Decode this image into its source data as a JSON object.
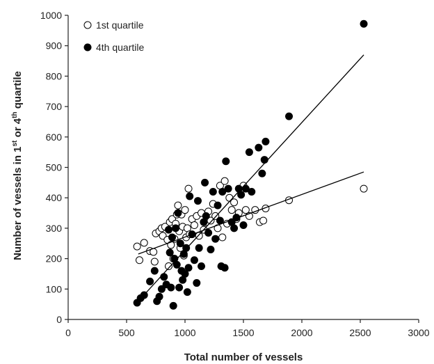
{
  "chart_data": {
    "type": "scatter",
    "xlabel": "Total number of vessels",
    "ylabel": "Number of vessels in 1st or 4th quartile",
    "xlim": [
      0,
      3000
    ],
    "ylim": [
      0,
      1000
    ],
    "xticks": [
      0,
      500,
      1000,
      1500,
      2000,
      2500,
      3000
    ],
    "yticks": [
      0,
      100,
      200,
      300,
      400,
      500,
      600,
      700,
      800,
      900,
      1000
    ],
    "grid": false,
    "legend_position": "top-left",
    "series": [
      {
        "name": "1st quartile",
        "marker": "open-circle",
        "color": "#000000",
        "trendline": [
          [
            600,
            215
          ],
          [
            2530,
            485
          ]
        ],
        "points": [
          [
            590,
            240
          ],
          [
            610,
            195
          ],
          [
            650,
            252
          ],
          [
            700,
            225
          ],
          [
            730,
            222
          ],
          [
            740,
            190
          ],
          [
            750,
            283
          ],
          [
            780,
            290
          ],
          [
            800,
            300
          ],
          [
            810,
            275
          ],
          [
            830,
            305
          ],
          [
            850,
            262
          ],
          [
            860,
            175
          ],
          [
            870,
            320
          ],
          [
            880,
            245
          ],
          [
            890,
            330
          ],
          [
            900,
            200
          ],
          [
            910,
            265
          ],
          [
            920,
            315
          ],
          [
            930,
            345
          ],
          [
            940,
            375
          ],
          [
            950,
            290
          ],
          [
            960,
            235
          ],
          [
            970,
            345
          ],
          [
            980,
            305
          ],
          [
            990,
            210
          ],
          [
            1000,
            360
          ],
          [
            1010,
            270
          ],
          [
            1020,
            300
          ],
          [
            1030,
            430
          ],
          [
            1040,
            280
          ],
          [
            1060,
            330
          ],
          [
            1080,
            310
          ],
          [
            1100,
            340
          ],
          [
            1120,
            275
          ],
          [
            1140,
            350
          ],
          [
            1160,
            295
          ],
          [
            1180,
            320
          ],
          [
            1200,
            355
          ],
          [
            1220,
            325
          ],
          [
            1240,
            380
          ],
          [
            1260,
            340
          ],
          [
            1280,
            300
          ],
          [
            1300,
            440
          ],
          [
            1320,
            270
          ],
          [
            1340,
            455
          ],
          [
            1360,
            315
          ],
          [
            1380,
            400
          ],
          [
            1400,
            360
          ],
          [
            1420,
            385
          ],
          [
            1440,
            330
          ],
          [
            1460,
            350
          ],
          [
            1500,
            440
          ],
          [
            1520,
            360
          ],
          [
            1550,
            340
          ],
          [
            1600,
            360
          ],
          [
            1640,
            320
          ],
          [
            1670,
            325
          ],
          [
            1690,
            365
          ],
          [
            1890,
            392
          ],
          [
            2530,
            430
          ]
        ]
      },
      {
        "name": "4th quartile",
        "marker": "filled-circle",
        "color": "#000000",
        "trendline": [
          [
            600,
            60
          ],
          [
            2530,
            870
          ]
        ],
        "points": [
          [
            590,
            55
          ],
          [
            620,
            70
          ],
          [
            650,
            80
          ],
          [
            700,
            125
          ],
          [
            740,
            160
          ],
          [
            760,
            60
          ],
          [
            780,
            75
          ],
          [
            800,
            100
          ],
          [
            820,
            140
          ],
          [
            840,
            115
          ],
          [
            860,
            295
          ],
          [
            870,
            220
          ],
          [
            880,
            105
          ],
          [
            890,
            270
          ],
          [
            900,
            45
          ],
          [
            910,
            200
          ],
          [
            920,
            300
          ],
          [
            930,
            180
          ],
          [
            940,
            350
          ],
          [
            950,
            105
          ],
          [
            960,
            250
          ],
          [
            970,
            160
          ],
          [
            980,
            130
          ],
          [
            990,
            215
          ],
          [
            1000,
            150
          ],
          [
            1010,
            235
          ],
          [
            1020,
            90
          ],
          [
            1030,
            170
          ],
          [
            1040,
            405
          ],
          [
            1060,
            280
          ],
          [
            1080,
            195
          ],
          [
            1100,
            120
          ],
          [
            1110,
            390
          ],
          [
            1120,
            235
          ],
          [
            1140,
            175
          ],
          [
            1160,
            320
          ],
          [
            1170,
            450
          ],
          [
            1180,
            340
          ],
          [
            1200,
            285
          ],
          [
            1220,
            230
          ],
          [
            1240,
            420
          ],
          [
            1260,
            265
          ],
          [
            1280,
            375
          ],
          [
            1300,
            325
          ],
          [
            1310,
            175
          ],
          [
            1320,
            420
          ],
          [
            1340,
            170
          ],
          [
            1350,
            520
          ],
          [
            1370,
            430
          ],
          [
            1400,
            320
          ],
          [
            1420,
            300
          ],
          [
            1440,
            335
          ],
          [
            1460,
            430
          ],
          [
            1480,
            410
          ],
          [
            1500,
            310
          ],
          [
            1520,
            430
          ],
          [
            1550,
            550
          ],
          [
            1570,
            420
          ],
          [
            1630,
            565
          ],
          [
            1660,
            480
          ],
          [
            1680,
            525
          ],
          [
            1690,
            585
          ],
          [
            1890,
            668
          ],
          [
            2530,
            972
          ]
        ]
      }
    ]
  }
}
